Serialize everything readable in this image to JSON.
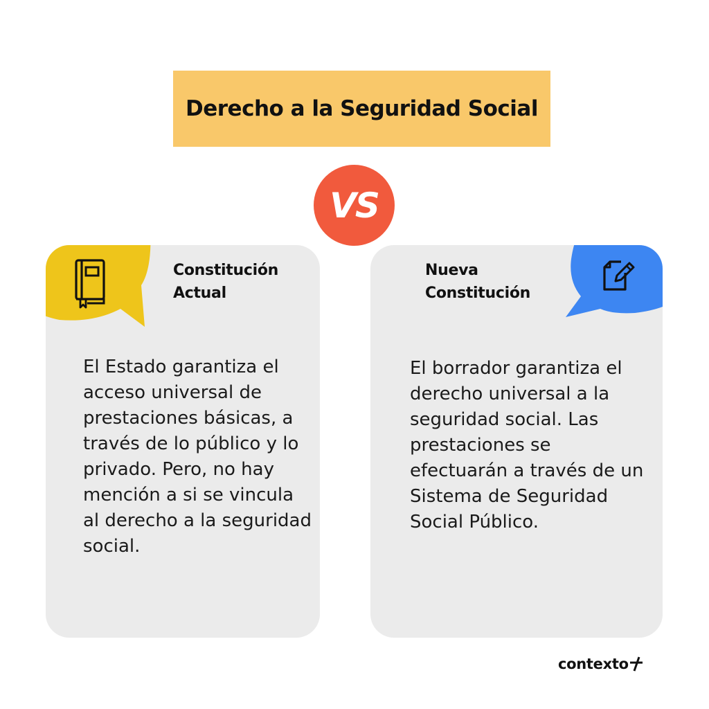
{
  "header": {
    "title": "Derecho a la Seguridad Social"
  },
  "versus": {
    "label": "VS",
    "color": "#f15a3d"
  },
  "cards": [
    {
      "title_line1": "Constitución",
      "title_line2": "Actual",
      "icon": "book-icon",
      "accent_color": "#eec51b",
      "body": "El Estado garantiza el acceso universal de prestaciones básicas, a través de lo público y lo privado. Pero, no hay mención a si se vincula al derecho a la seguridad social."
    },
    {
      "title_line1": "Nueva",
      "title_line2": "Constitución",
      "icon": "document-edit-icon",
      "accent_color": "#3d86f2",
      "body": "El borrador garantiza el derecho universal a la seguridad social. Las prestaciones se efectuarán a través de un Sistema de Seguridad Social Público."
    }
  ],
  "brand": {
    "name": "contexto",
    "icon": "plus-slash-icon"
  },
  "colors": {
    "title_bg": "#f9c86a",
    "card_bg": "#ebebeb",
    "text": "#111111"
  }
}
